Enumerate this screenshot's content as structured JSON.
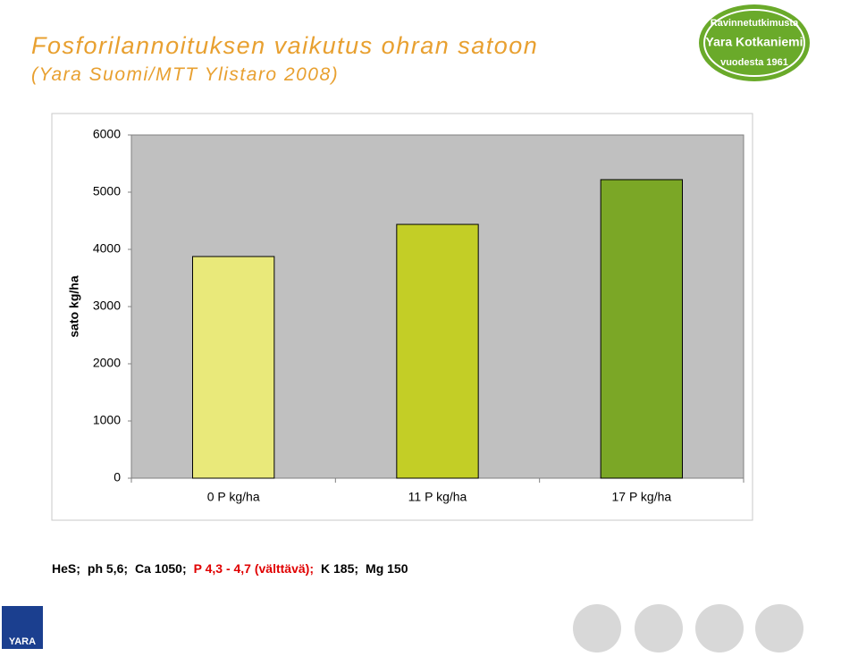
{
  "header": {
    "title": "Fosforilannoituksen vaikutus ohran satoon",
    "subtitle": "(Yara Suomi/MTT Ylistaro 2008)"
  },
  "logo": {
    "top": "Ravinnetutkimusta",
    "middle": "Yara Kotkaniemi",
    "bottom": "vuodesta 1961",
    "brand": "YARA"
  },
  "chart_data": {
    "type": "bar",
    "y_label": "sato kg/ha",
    "categories": [
      "0 P kg/ha",
      "11 P kg/ha",
      "17 P kg/ha"
    ],
    "values": [
      3875,
      4437,
      5219
    ],
    "colors": [
      "#e9e97a",
      "#c3ce26",
      "#7ba726"
    ],
    "ylim": [
      0,
      6000
    ],
    "yticks": [
      0,
      1000,
      2000,
      3000,
      4000,
      5000,
      6000
    ],
    "grid": false,
    "plot_background": "#c0c0c0"
  },
  "footnote": [
    {
      "text": "HeS;",
      "color": "#000000"
    },
    {
      "text": "ph 5,6;",
      "color": "#000000"
    },
    {
      "text": "Ca 1050;",
      "color": "#000000"
    },
    {
      "text": "P 4,3 - 4,7 (välttävä);",
      "color": "#e00000"
    },
    {
      "text": "K 185;",
      "color": "#000000"
    },
    {
      "text": "Mg 150",
      "color": "#000000"
    }
  ]
}
